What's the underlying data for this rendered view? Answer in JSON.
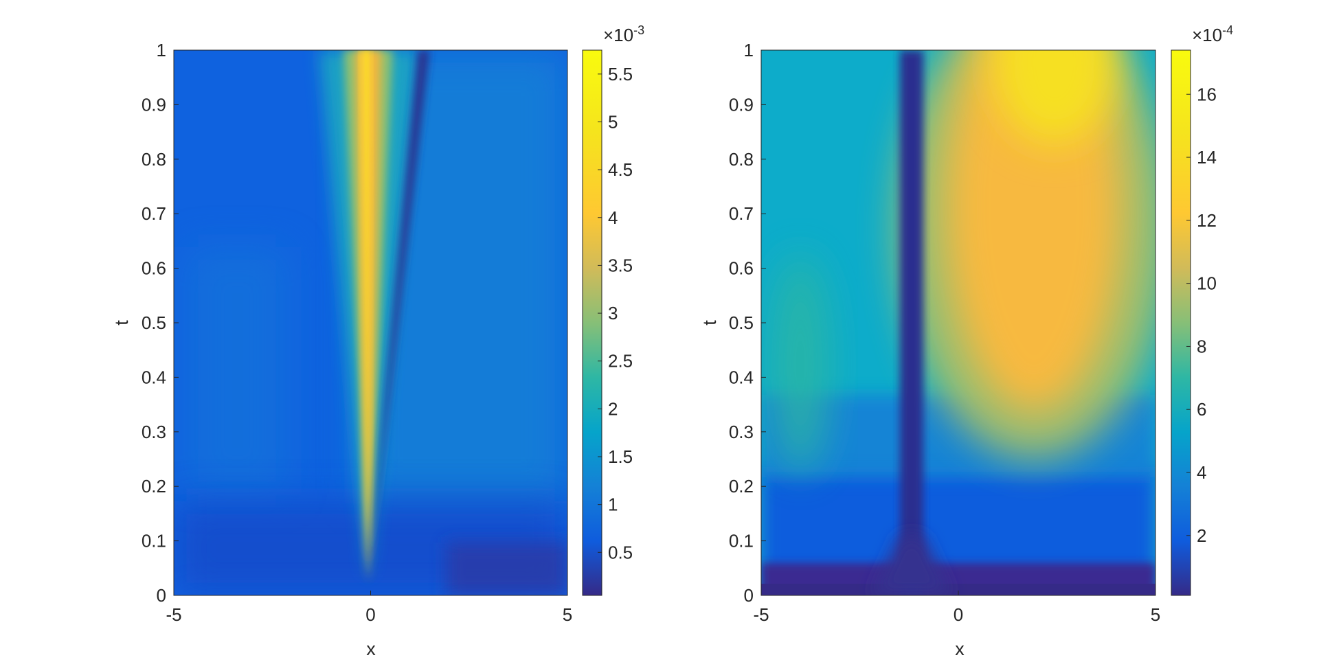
{
  "chart_data": [
    {
      "type": "heatmap",
      "plot_style": "filled contour",
      "xlabel": "x",
      "ylabel": "t",
      "xlim": [
        -5,
        5
      ],
      "ylim": [
        0,
        1
      ],
      "x_ticks": [
        "-5",
        "0",
        "5"
      ],
      "y_ticks": [
        "0",
        "0.1",
        "0.2",
        "0.3",
        "0.4",
        "0.5",
        "0.6",
        "0.7",
        "0.8",
        "0.9",
        "1"
      ],
      "colorbar": {
        "range": [
          0.05,
          5.75
        ],
        "ticks": [
          "0.5",
          "1",
          "1.5",
          "2",
          "2.5",
          "3",
          "3.5",
          "4",
          "4.5",
          "5",
          "5.5"
        ],
        "exponent_base": "×10",
        "exponent_power": "-3",
        "colormap": "parula"
      },
      "grid": false,
      "features": {
        "peak_ridge_x": 0,
        "peak_value": 5.7,
        "trough_line_from": [
          0,
          0.02
        ],
        "trough_line_to": [
          1.45,
          1
        ],
        "background_value": 1.0
      }
    },
    {
      "type": "heatmap",
      "plot_style": "filled contour",
      "xlabel": "x",
      "ylabel": "t",
      "xlim": [
        -5,
        5
      ],
      "ylim": [
        0,
        1
      ],
      "x_ticks": [
        "-5",
        "0",
        "5"
      ],
      "y_ticks": [
        "0",
        "0.1",
        "0.2",
        "0.3",
        "0.4",
        "0.5",
        "0.6",
        "0.7",
        "0.8",
        "0.9",
        "1"
      ],
      "colorbar": {
        "range": [
          0.1,
          17.4
        ],
        "ticks": [
          "2",
          "4",
          "6",
          "8",
          "10",
          "12",
          "14",
          "16"
        ],
        "exponent_base": "×10",
        "exponent_power": "-4",
        "colormap": "parula"
      },
      "grid": false,
      "features": {
        "trough_x": -1.3,
        "peak_x": 2.5,
        "peak_value": 17.2,
        "secondary_peak_x": -4.1,
        "secondary_peak_value": 7.5
      }
    }
  ]
}
